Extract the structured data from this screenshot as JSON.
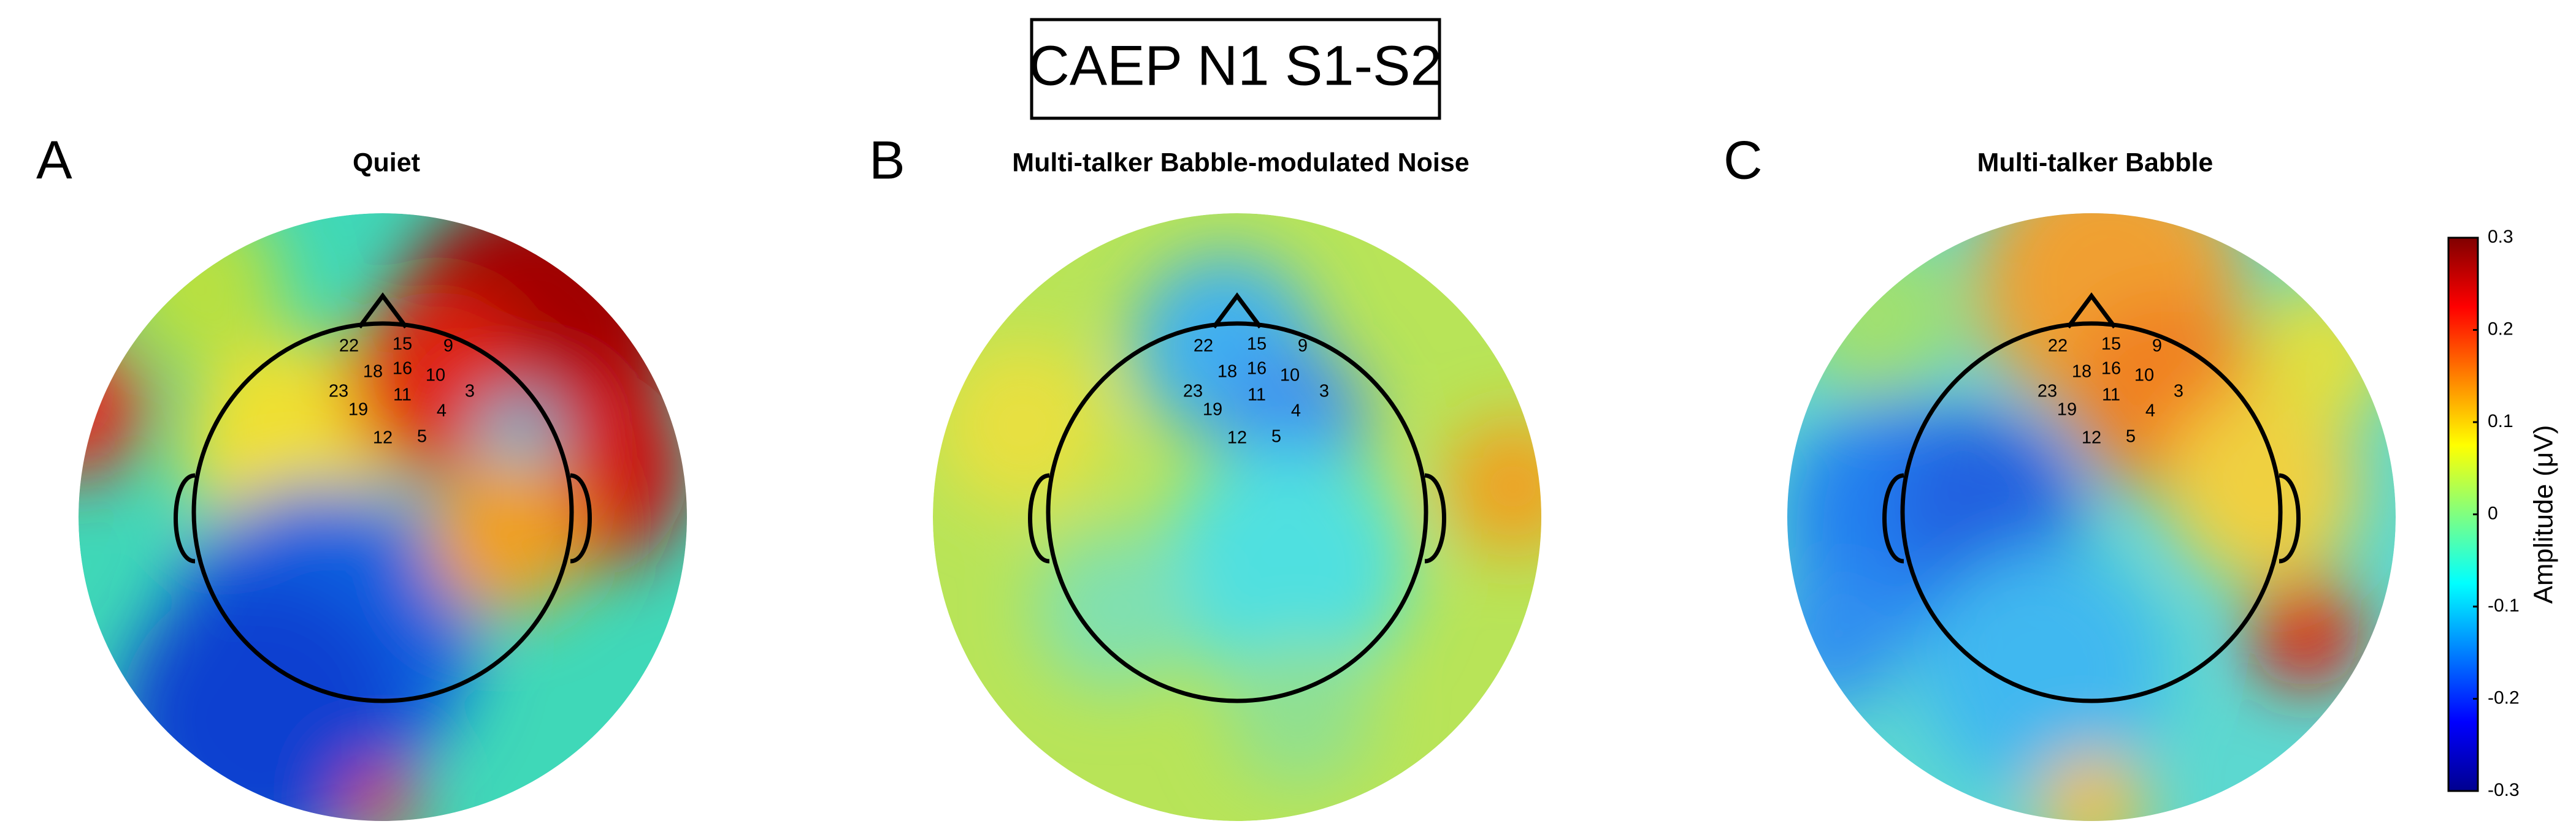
{
  "title": "CAEP N1 S1-S2",
  "panels": [
    {
      "letter": "A",
      "title": "Quiet",
      "electrodes": [
        "22",
        "15",
        "9",
        "18",
        "16",
        "10",
        "23",
        "3",
        "11",
        "19",
        "4",
        "12",
        "5"
      ]
    },
    {
      "letter": "B",
      "title": "Multi-talker Babble-modulated Noise",
      "electrodes": [
        "22",
        "15",
        "9",
        "18",
        "16",
        "10",
        "23",
        "3",
        "11",
        "19",
        "4",
        "12",
        "5"
      ]
    },
    {
      "letter": "C",
      "title": "Multi-talker Babble",
      "electrodes": [
        "22",
        "15",
        "9",
        "18",
        "16",
        "10",
        "23",
        "3",
        "11",
        "19",
        "4",
        "12",
        "5"
      ]
    }
  ],
  "colorbar": {
    "label": "Amplitude (μV)",
    "lim": [
      -0.3,
      0.3
    ],
    "ticks": [
      0.3,
      0.2,
      0.1,
      0,
      -0.1,
      -0.2,
      -0.3
    ]
  }
}
